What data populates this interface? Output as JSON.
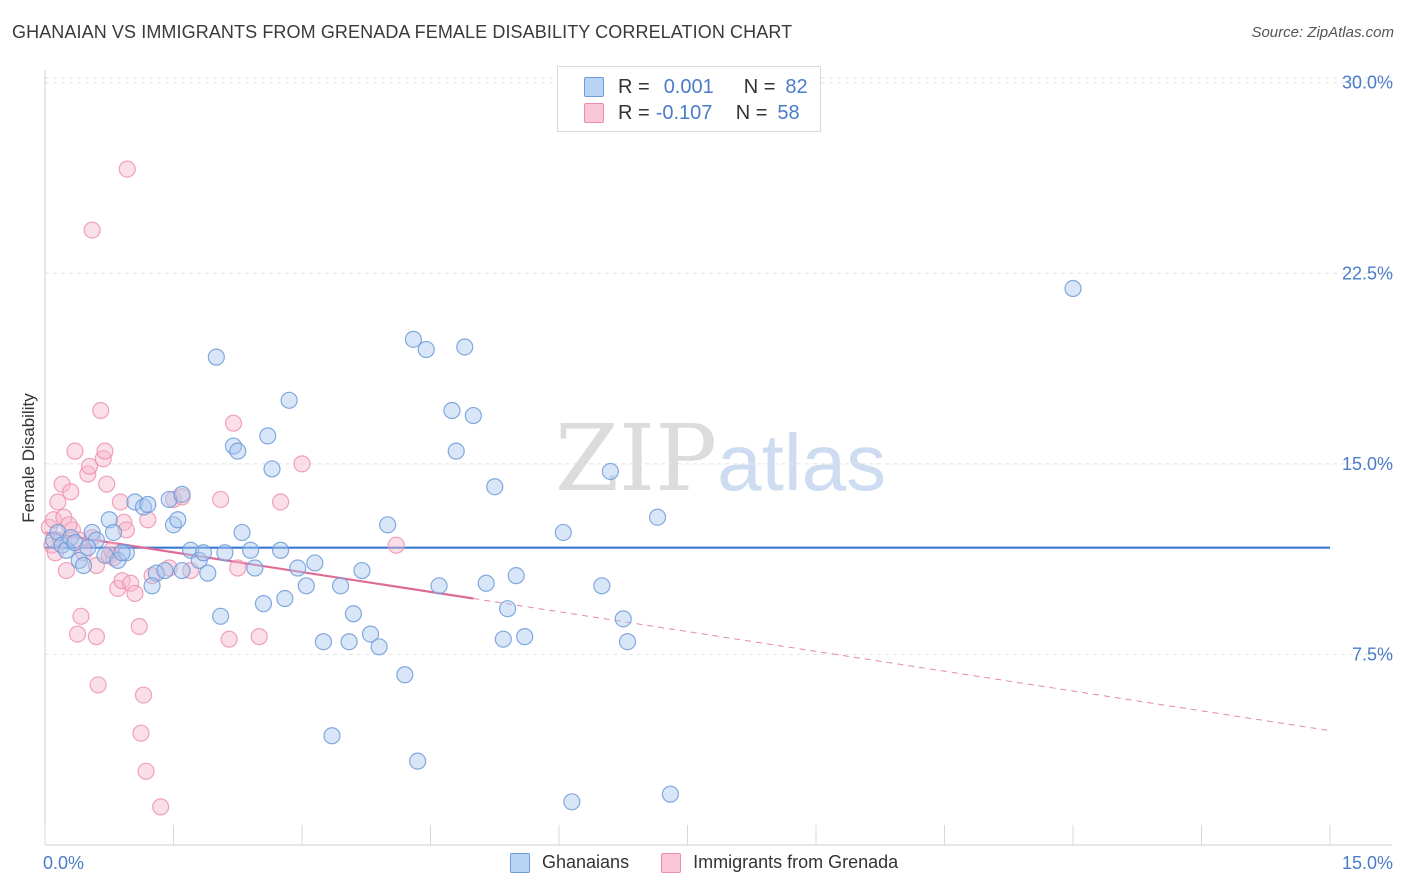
{
  "header": {
    "title": "GHANAIAN VS IMMIGRANTS FROM GRENADA FEMALE DISABILITY CORRELATION CHART",
    "source": "Source: ZipAtlas.com"
  },
  "watermark": {
    "zip": "ZIP",
    "atlas": "atlas"
  },
  "legend": {
    "rows": [
      {
        "r_label": "R =",
        "r_value": "0.001",
        "n_label": "N =",
        "n_value": "82"
      },
      {
        "r_label": "R =",
        "r_value": "-0.107",
        "n_label": "N =",
        "n_value": "58"
      }
    ]
  },
  "bottom_legend": {
    "series1": "Ghanaians",
    "series2": "Immigrants from Grenada"
  },
  "colors": {
    "blue_fill": "#a9c8f0",
    "blue_stroke": "#6f9bd8",
    "blue_line": "#3a78d0",
    "pink_fill": "#f6b8cb",
    "pink_stroke": "#ee8cab",
    "pink_line": "#e06a97",
    "tick": "#4a7cc9",
    "grid": "#e2e2e2"
  },
  "chart_data": {
    "type": "scatter",
    "title": "GHANAIAN VS IMMIGRANTS FROM GRENADA FEMALE DISABILITY CORRELATION CHART",
    "ylabel": "Female Disability",
    "xlabel": "",
    "xlim": [
      0,
      15
    ],
    "ylim": [
      0,
      30.5
    ],
    "x_tick_labels": [
      "0.0%",
      "15.0%"
    ],
    "y_ticks": [
      7.5,
      15.0,
      22.5,
      30.0
    ],
    "y_tick_labels": [
      "7.5%",
      "15.0%",
      "22.5%",
      "30.0%"
    ],
    "grid": "horizontal dashed",
    "series": [
      {
        "name": "Ghanaians",
        "trend": {
          "x": [
            0,
            15
          ],
          "y": [
            11.7,
            11.7
          ],
          "solid_to": 15
        },
        "points": [
          [
            0.1,
            12.0
          ],
          [
            0.15,
            12.3
          ],
          [
            0.2,
            11.8
          ],
          [
            0.25,
            11.6
          ],
          [
            0.3,
            12.1
          ],
          [
            0.35,
            11.9
          ],
          [
            0.4,
            11.2
          ],
          [
            0.45,
            11.0
          ],
          [
            0.55,
            12.3
          ],
          [
            0.6,
            12.0
          ],
          [
            0.7,
            11.4
          ],
          [
            0.75,
            12.8
          ],
          [
            0.8,
            12.3
          ],
          [
            0.85,
            11.2
          ],
          [
            0.95,
            11.5
          ],
          [
            1.05,
            13.5
          ],
          [
            1.15,
            13.3
          ],
          [
            1.2,
            13.4
          ],
          [
            1.3,
            10.7
          ],
          [
            1.4,
            10.8
          ],
          [
            1.45,
            13.6
          ],
          [
            1.5,
            12.6
          ],
          [
            1.55,
            12.8
          ],
          [
            1.6,
            10.8
          ],
          [
            1.7,
            11.6
          ],
          [
            1.8,
            11.2
          ],
          [
            1.85,
            11.5
          ],
          [
            1.9,
            10.7
          ],
          [
            2.05,
            9.0
          ],
          [
            2.2,
            15.7
          ],
          [
            2.25,
            15.5
          ],
          [
            2.3,
            12.3
          ],
          [
            2.4,
            11.6
          ],
          [
            2.45,
            10.9
          ],
          [
            2.55,
            9.5
          ],
          [
            2.6,
            16.1
          ],
          [
            2.65,
            14.8
          ],
          [
            2.75,
            11.6
          ],
          [
            2.8,
            9.7
          ],
          [
            2.85,
            17.5
          ],
          [
            2.95,
            10.9
          ],
          [
            3.05,
            10.2
          ],
          [
            3.15,
            11.1
          ],
          [
            3.25,
            8.0
          ],
          [
            3.35,
            4.3
          ],
          [
            3.45,
            10.2
          ],
          [
            3.55,
            8.0
          ],
          [
            3.6,
            9.1
          ],
          [
            3.7,
            10.8
          ],
          [
            3.8,
            8.3
          ],
          [
            3.9,
            7.8
          ],
          [
            4.0,
            12.6
          ],
          [
            4.2,
            6.7
          ],
          [
            4.3,
            19.9
          ],
          [
            4.35,
            3.3
          ],
          [
            4.45,
            19.5
          ],
          [
            4.6,
            10.2
          ],
          [
            4.75,
            17.1
          ],
          [
            4.8,
            15.5
          ],
          [
            4.9,
            19.6
          ],
          [
            5.0,
            16.9
          ],
          [
            5.15,
            10.3
          ],
          [
            5.25,
            14.1
          ],
          [
            5.35,
            8.1
          ],
          [
            5.4,
            9.3
          ],
          [
            5.5,
            10.6
          ],
          [
            5.6,
            8.2
          ],
          [
            6.05,
            12.3
          ],
          [
            6.15,
            1.7
          ],
          [
            6.5,
            10.2
          ],
          [
            6.6,
            14.7
          ],
          [
            6.75,
            8.9
          ],
          [
            6.8,
            8.0
          ],
          [
            7.3,
            2.0
          ],
          [
            7.15,
            12.9
          ],
          [
            2.0,
            19.2
          ],
          [
            1.6,
            13.8
          ],
          [
            0.9,
            11.5
          ],
          [
            1.25,
            10.2
          ],
          [
            2.1,
            11.5
          ],
          [
            0.5,
            11.7
          ],
          [
            12.0,
            21.9
          ]
        ]
      },
      {
        "name": "Immigrants from Grenada",
        "trend": {
          "x": [
            0,
            15
          ],
          "y": [
            12.3,
            4.5
          ],
          "solid_to": 5.0
        },
        "points": [
          [
            0.05,
            12.5
          ],
          [
            0.08,
            11.8
          ],
          [
            0.1,
            12.8
          ],
          [
            0.12,
            11.5
          ],
          [
            0.15,
            13.5
          ],
          [
            0.2,
            14.2
          ],
          [
            0.22,
            12.9
          ],
          [
            0.25,
            10.8
          ],
          [
            0.3,
            13.9
          ],
          [
            0.32,
            12.4
          ],
          [
            0.35,
            15.5
          ],
          [
            0.38,
            8.3
          ],
          [
            0.4,
            12.0
          ],
          [
            0.42,
            9.0
          ],
          [
            0.45,
            11.5
          ],
          [
            0.5,
            14.6
          ],
          [
            0.52,
            14.9
          ],
          [
            0.55,
            12.1
          ],
          [
            0.6,
            8.2
          ],
          [
            0.62,
            6.3
          ],
          [
            0.65,
            17.1
          ],
          [
            0.68,
            15.2
          ],
          [
            0.7,
            15.5
          ],
          [
            0.72,
            14.2
          ],
          [
            0.75,
            11.4
          ],
          [
            0.8,
            11.3
          ],
          [
            0.85,
            10.1
          ],
          [
            0.88,
            13.5
          ],
          [
            0.9,
            10.4
          ],
          [
            0.92,
            12.7
          ],
          [
            0.95,
            12.4
          ],
          [
            0.96,
            26.6
          ],
          [
            1.0,
            10.3
          ],
          [
            1.05,
            9.9
          ],
          [
            1.1,
            8.6
          ],
          [
            1.12,
            4.4
          ],
          [
            1.15,
            5.9
          ],
          [
            1.18,
            2.9
          ],
          [
            1.2,
            12.8
          ],
          [
            1.25,
            10.6
          ],
          [
            1.35,
            1.5
          ],
          [
            1.45,
            10.9
          ],
          [
            1.5,
            13.6
          ],
          [
            1.6,
            13.7
          ],
          [
            1.7,
            10.8
          ],
          [
            2.05,
            13.6
          ],
          [
            2.15,
            8.1
          ],
          [
            2.2,
            16.6
          ],
          [
            2.25,
            10.9
          ],
          [
            2.5,
            8.2
          ],
          [
            2.75,
            13.5
          ],
          [
            3.0,
            15.0
          ],
          [
            4.1,
            11.8
          ],
          [
            0.55,
            24.2
          ],
          [
            0.18,
            12.0
          ],
          [
            0.28,
            12.6
          ],
          [
            0.78,
            11.6
          ],
          [
            0.6,
            11.0
          ]
        ]
      }
    ]
  }
}
